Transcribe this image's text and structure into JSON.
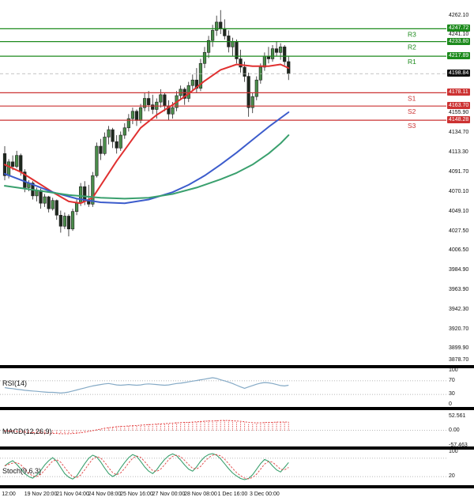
{
  "price_axis": {
    "ticks": [
      {
        "label": "4262.10",
        "price": 4262.1
      },
      {
        "label": "4241.10",
        "price": 4241.1
      },
      {
        "label": "4155.90",
        "price": 4155.9
      },
      {
        "label": "4134.70",
        "price": 4134.7
      },
      {
        "label": "4113.30",
        "price": 4113.3
      },
      {
        "label": "4091.70",
        "price": 4091.7
      },
      {
        "label": "4070.10",
        "price": 4070.1
      },
      {
        "label": "4049.10",
        "price": 4049.1
      },
      {
        "label": "4027.50",
        "price": 4027.5
      },
      {
        "label": "4006.50",
        "price": 4006.5
      },
      {
        "label": "3984.90",
        "price": 3984.9
      },
      {
        "label": "3963.90",
        "price": 3963.9
      },
      {
        "label": "3942.30",
        "price": 3942.3
      },
      {
        "label": "3920.70",
        "price": 3920.7
      },
      {
        "label": "3899.90",
        "price": 3899.9
      },
      {
        "label": "3878.70",
        "price": 3878.7
      }
    ],
    "badges": [
      {
        "label": "4247.72",
        "price": 4247.72,
        "kind": "resistance"
      },
      {
        "label": "4233.80",
        "price": 4233.8,
        "kind": "resistance"
      },
      {
        "label": "4217.89",
        "price": 4217.89,
        "kind": "resistance"
      },
      {
        "label": "4198.84",
        "price": 4198.84,
        "kind": "current"
      },
      {
        "label": "4178.11",
        "price": 4178.11,
        "kind": "support"
      },
      {
        "label": "4163.70",
        "price": 4163.7,
        "kind": "support"
      },
      {
        "label": "4148.28",
        "price": 4148.28,
        "kind": "support"
      }
    ]
  },
  "pivots": [
    {
      "name": "R3",
      "price": 4247.72,
      "kind": "resistance"
    },
    {
      "name": "R2",
      "price": 4233.8,
      "kind": "resistance"
    },
    {
      "name": "R1",
      "price": 4217.89,
      "kind": "resistance"
    },
    {
      "name": "S1",
      "price": 4178.11,
      "kind": "support"
    },
    {
      "name": "S2",
      "price": 4163.7,
      "kind": "support"
    },
    {
      "name": "S3",
      "price": 4148.28,
      "kind": "support"
    }
  ],
  "colors": {
    "resistance": "#1c8a1c",
    "support": "#cc3232",
    "current": "#101010",
    "bull": "#4a8c4a",
    "bear": "#1e281e",
    "wick": "#222222",
    "ma_fast": "#e03030",
    "ma_mid": "#3c5ccc",
    "ma_slow": "#3aa06e",
    "rsi": "#85aac6",
    "macd": "#e03030",
    "stoch_k": "#3aa06e",
    "stoch_d": "#e04040",
    "grid": "#a0a0a0"
  },
  "chart_data": [
    {
      "type": "candlestick",
      "name": "price",
      "ylim": [
        3882,
        4279
      ],
      "x_labels": [
        "12:00",
        "19 Nov 20:00",
        "21 Nov 04:00",
        "24 Nov 08:00",
        "25 Nov 16:00",
        "27 Nov 00:00",
        "28 Nov 08:00",
        "1 Dec 16:00",
        "3 Dec 00:00"
      ],
      "x_label_start": 1,
      "x_label_every": 8,
      "candles": [
        [
          4112,
          4120,
          4083,
          4088
        ],
        [
          4088,
          4106,
          4085,
          4103
        ],
        [
          4103,
          4110,
          4094,
          4098
        ],
        [
          4098,
          4115,
          4096,
          4110
        ],
        [
          4110,
          4112,
          4088,
          4092
        ],
        [
          4092,
          4095,
          4070,
          4075
        ],
        [
          4075,
          4083,
          4071,
          4080
        ],
        [
          4080,
          4082,
          4062,
          4066
        ],
        [
          4066,
          4075,
          4060,
          4072
        ],
        [
          4072,
          4074,
          4052,
          4058
        ],
        [
          4058,
          4068,
          4054,
          4065
        ],
        [
          4065,
          4066,
          4048,
          4052
        ],
        [
          4052,
          4064,
          4050,
          4061
        ],
        [
          4061,
          4062,
          4040,
          4045
        ],
        [
          4045,
          4050,
          4026,
          4033
        ],
        [
          4033,
          4048,
          4030,
          4044
        ],
        [
          4044,
          4046,
          4022,
          4030
        ],
        [
          4030,
          4052,
          4028,
          4049
        ],
        [
          4049,
          4062,
          4045,
          4058
        ],
        [
          4058,
          4080,
          4055,
          4076
        ],
        [
          4076,
          4082,
          4056,
          4060
        ],
        [
          4060,
          4078,
          4054,
          4057
        ],
        [
          4057,
          4092,
          4054,
          4088
        ],
        [
          4088,
          4124,
          4086,
          4120
        ],
        [
          4120,
          4128,
          4105,
          4112
        ],
        [
          4112,
          4135,
          4110,
          4130
        ],
        [
          4130,
          4142,
          4122,
          4138
        ],
        [
          4138,
          4140,
          4118,
          4125
        ],
        [
          4125,
          4132,
          4112,
          4118
        ],
        [
          4118,
          4136,
          4115,
          4132
        ],
        [
          4132,
          4145,
          4128,
          4140
        ],
        [
          4140,
          4155,
          4136,
          4150
        ],
        [
          4150,
          4162,
          4144,
          4158
        ],
        [
          4158,
          4160,
          4142,
          4148
        ],
        [
          4148,
          4166,
          4145,
          4162
        ],
        [
          4162,
          4178,
          4158,
          4172
        ],
        [
          4172,
          4180,
          4158,
          4165
        ],
        [
          4165,
          4176,
          4155,
          4160
        ],
        [
          4160,
          4172,
          4150,
          4168
        ],
        [
          4168,
          4182,
          4162,
          4176
        ],
        [
          4176,
          4178,
          4158,
          4164
        ],
        [
          4164,
          4170,
          4148,
          4155
        ],
        [
          4155,
          4168,
          4150,
          4162
        ],
        [
          4162,
          4180,
          4158,
          4175
        ],
        [
          4175,
          4186,
          4170,
          4182
        ],
        [
          4182,
          4184,
          4165,
          4172
        ],
        [
          4172,
          4190,
          4168,
          4186
        ],
        [
          4186,
          4198,
          4180,
          4192
        ],
        [
          4192,
          4205,
          4178,
          4183
        ],
        [
          4183,
          4215,
          4180,
          4210
        ],
        [
          4210,
          4228,
          4205,
          4222
        ],
        [
          4222,
          4240,
          4216,
          4235
        ],
        [
          4235,
          4252,
          4228,
          4246
        ],
        [
          4246,
          4262,
          4240,
          4255
        ],
        [
          4255,
          4268,
          4242,
          4248
        ],
        [
          4248,
          4258,
          4236,
          4240
        ],
        [
          4240,
          4246,
          4222,
          4228
        ],
        [
          4228,
          4238,
          4218,
          4234
        ],
        [
          4234,
          4236,
          4210,
          4215
        ],
        [
          4215,
          4225,
          4200,
          4206
        ],
        [
          4206,
          4212,
          4190,
          4196
        ],
        [
          4196,
          4200,
          4152,
          4162
        ],
        [
          4162,
          4178,
          4156,
          4174
        ],
        [
          4174,
          4196,
          4170,
          4192
        ],
        [
          4192,
          4210,
          4188,
          4206
        ],
        [
          4206,
          4222,
          4202,
          4218
        ],
        [
          4218,
          4228,
          4210,
          4215
        ],
        [
          4215,
          4230,
          4212,
          4226
        ],
        [
          4226,
          4234,
          4218,
          4222
        ],
        [
          4222,
          4232,
          4214,
          4228
        ],
        [
          4228,
          4230,
          4208,
          4212
        ],
        [
          4212,
          4218,
          4192,
          4198.84
        ]
      ],
      "overlays": [
        {
          "name": "ma-fast",
          "color_key": "ma_fast",
          "points": [
            [
              0,
              4100
            ],
            [
              4,
              4092
            ],
            [
              8,
              4081
            ],
            [
              12,
              4070
            ],
            [
              16,
              4060
            ],
            [
              19,
              4058
            ],
            [
              22,
              4064
            ],
            [
              25,
              4084
            ],
            [
              28,
              4104
            ],
            [
              31,
              4122
            ],
            [
              34,
              4140
            ],
            [
              38,
              4154
            ],
            [
              42,
              4165
            ],
            [
              46,
              4177
            ],
            [
              50,
              4191
            ],
            [
              54,
              4203
            ],
            [
              58,
              4209
            ],
            [
              62,
              4207
            ],
            [
              66,
              4207
            ],
            [
              69,
              4209
            ],
            [
              71,
              4205
            ]
          ]
        },
        {
          "name": "ma-mid",
          "color_key": "ma_mid",
          "points": [
            [
              0,
              4090
            ],
            [
              6,
              4080
            ],
            [
              12,
              4070
            ],
            [
              18,
              4063
            ],
            [
              24,
              4059
            ],
            [
              30,
              4058
            ],
            [
              36,
              4062
            ],
            [
              42,
              4070
            ],
            [
              46,
              4078
            ],
            [
              50,
              4088
            ],
            [
              54,
              4100
            ],
            [
              58,
              4113
            ],
            [
              62,
              4127
            ],
            [
              66,
              4141
            ],
            [
              71,
              4157
            ]
          ]
        },
        {
          "name": "ma-slow",
          "color_key": "ma_slow",
          "points": [
            [
              0,
              4077
            ],
            [
              8,
              4072
            ],
            [
              16,
              4067
            ],
            [
              24,
              4064
            ],
            [
              30,
              4063
            ],
            [
              36,
              4064
            ],
            [
              42,
              4068
            ],
            [
              48,
              4075
            ],
            [
              54,
              4084
            ],
            [
              58,
              4091
            ],
            [
              62,
              4100
            ],
            [
              66,
              4112
            ],
            [
              69,
              4123
            ],
            [
              71,
              4132
            ]
          ]
        }
      ]
    },
    {
      "type": "line",
      "name": "RSI(14)",
      "ylim": [
        -7,
        107
      ],
      "grid": [
        70,
        30
      ],
      "axis_ticks": [
        {
          "label": "100",
          "value": 100
        },
        {
          "label": "70",
          "value": 70
        },
        {
          "label": "30",
          "value": 30
        },
        {
          "label": "0",
          "value": 0
        }
      ],
      "values": [
        50,
        48,
        47,
        45,
        44,
        42,
        41,
        40,
        39,
        38,
        37,
        36,
        36,
        35,
        34,
        35,
        37,
        40,
        43,
        46,
        49,
        52,
        55,
        57,
        59,
        61,
        62,
        60,
        58,
        57,
        58,
        59,
        58,
        57,
        58,
        60,
        61,
        60,
        59,
        58,
        57,
        58,
        60,
        62,
        63,
        65,
        67,
        69,
        71,
        73,
        75,
        77,
        79,
        77,
        73,
        70,
        66,
        62,
        57,
        52,
        48,
        52,
        56,
        60,
        63,
        65,
        64,
        62,
        59,
        56,
        55,
        57
      ]
    },
    {
      "type": "bar",
      "name": "MACD(12,26,9)",
      "ylim": [
        -62,
        78
      ],
      "grid": [
        0
      ],
      "axis_ticks": [
        {
          "label": "52.561",
          "value": 52.561
        },
        {
          "label": "0.00",
          "value": 0
        },
        {
          "label": "-57.463",
          "value": -57.463
        }
      ],
      "values": [
        -3,
        -4,
        -5,
        -6,
        -7,
        -8,
        -9,
        -10,
        -11,
        -11,
        -12,
        -12,
        -13,
        -13,
        -14,
        -14,
        -13,
        -12,
        -10,
        -8,
        -5,
        -2,
        1,
        4,
        7,
        10,
        12,
        14,
        16,
        17,
        18,
        19,
        20,
        21,
        22,
        23,
        24,
        25,
        26,
        26,
        27,
        28,
        29,
        30,
        31,
        32,
        33,
        34,
        35,
        36,
        37,
        38,
        38,
        39,
        39,
        38,
        37,
        36,
        34,
        32,
        30,
        28,
        28,
        29,
        30,
        31,
        32,
        32,
        33,
        33,
        32,
        31
      ],
      "signal": [
        -2,
        -3,
        -4,
        -5,
        -6,
        -7,
        -8,
        -9,
        -10,
        -10,
        -11,
        -11,
        -12,
        -12,
        -13,
        -13,
        -13,
        -12,
        -11,
        -9,
        -7,
        -4,
        -1,
        2,
        5,
        8,
        10,
        12,
        14,
        15,
        16,
        17,
        18,
        19,
        20,
        21,
        22,
        23,
        24,
        25,
        26,
        27,
        28,
        29,
        30,
        31,
        31,
        32,
        33,
        34,
        35,
        36,
        36,
        37,
        38,
        38,
        38,
        37,
        36,
        35,
        33,
        31,
        30,
        29,
        29,
        30,
        31,
        31,
        32,
        32,
        32,
        32
      ]
    },
    {
      "type": "line",
      "name": "Stoch(9,6,3)",
      "ylim": [
        -8,
        108
      ],
      "grid": [
        80,
        20
      ],
      "axis_ticks": [
        {
          "label": "100",
          "value": 100
        },
        {
          "label": "20",
          "value": 20
        }
      ],
      "series": [
        {
          "name": "%K",
          "values": [
            55,
            65,
            72,
            60,
            45,
            30,
            20,
            15,
            25,
            40,
            58,
            72,
            82,
            70,
            50,
            30,
            18,
            12,
            22,
            42,
            62,
            80,
            90,
            84,
            68,
            48,
            30,
            20,
            28,
            48,
            66,
            82,
            92,
            86,
            70,
            52,
            38,
            30,
            42,
            60,
            76,
            88,
            94,
            88,
            74,
            58,
            44,
            38,
            52,
            70,
            84,
            92,
            95,
            90,
            78,
            62,
            46,
            32,
            22,
            14,
            10,
            14,
            26,
            44,
            62,
            76,
            70,
            55,
            42,
            35,
            50,
            66
          ]
        },
        {
          "name": "%D",
          "dashed": true,
          "values": [
            55,
            60,
            64,
            66,
            59,
            45,
            32,
            22,
            20,
            27,
            41,
            57,
            71,
            75,
            67,
            50,
            33,
            20,
            17,
            25,
            42,
            61,
            77,
            85,
            81,
            67,
            49,
            33,
            26,
            32,
            47,
            65,
            80,
            87,
            83,
            69,
            53,
            40,
            37,
            44,
            59,
            75,
            86,
            90,
            85,
            73,
            59,
            47,
            45,
            53,
            69,
            82,
            90,
            92,
            88,
            77,
            62,
            47,
            33,
            23,
            15,
            13,
            17,
            28,
            44,
            61,
            69,
            67,
            56,
            44,
            42,
            50
          ]
        }
      ]
    }
  ]
}
